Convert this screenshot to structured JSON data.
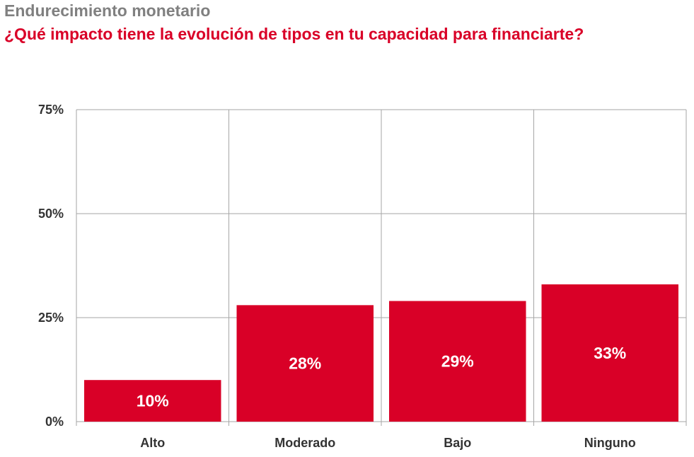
{
  "header": {
    "kicker": "Endurecimiento monetario",
    "title": "¿Qué impacto tiene la evolución de tipos en tu capacidad para financiarte?"
  },
  "colors": {
    "bar": "#d90027",
    "grid": "#a6a6a6",
    "kicker": "#808080",
    "title": "#d90027"
  },
  "chart_data": {
    "type": "bar",
    "title": "¿Qué impacto tiene la evolución de tipos en tu capacidad para financiarte?",
    "xlabel": "",
    "ylabel": "",
    "categories": [
      "Alto",
      "Moderado",
      "Bajo",
      "Ninguno"
    ],
    "values": [
      10,
      28,
      29,
      33
    ],
    "data_labels": [
      "10%",
      "28%",
      "29%",
      "33%"
    ],
    "ylim": [
      0,
      75
    ],
    "yticks": [
      0,
      25,
      50,
      75
    ],
    "ytick_labels": [
      "0%",
      "25%",
      "50%",
      "75%"
    ],
    "grid": true,
    "legend": "none"
  }
}
